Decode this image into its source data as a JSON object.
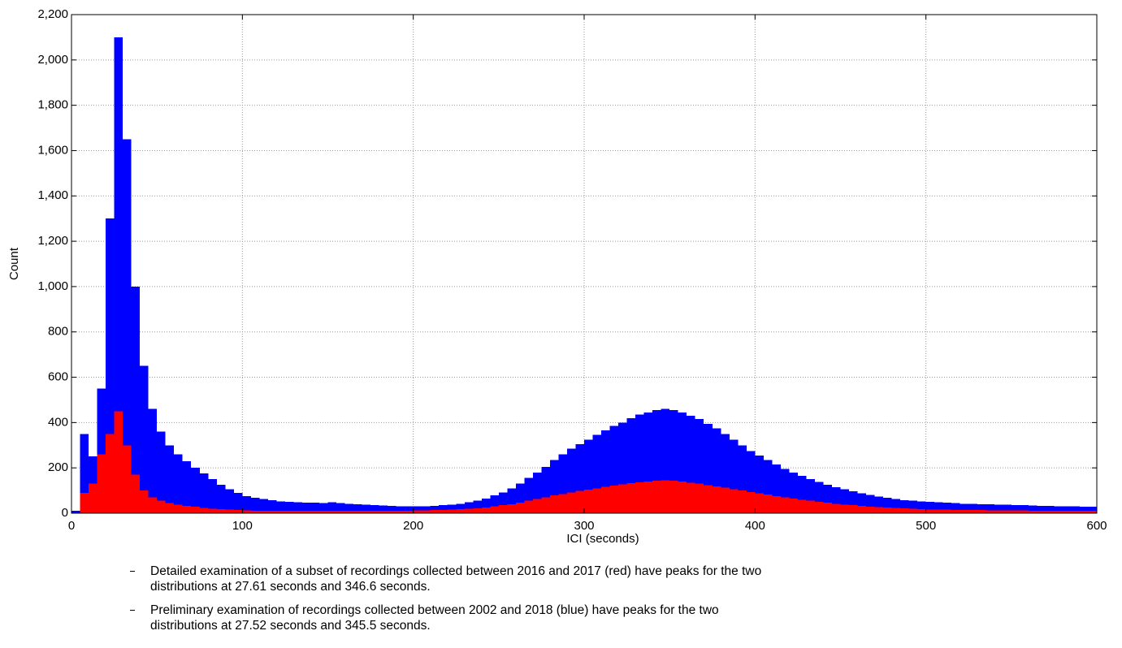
{
  "chart_data": {
    "type": "histogram",
    "xlabel": "ICI (seconds)",
    "ylabel": "Count",
    "xlim": [
      0,
      600
    ],
    "ylim": [
      0,
      2200
    ],
    "xticks": [
      0,
      100,
      200,
      300,
      400,
      500,
      600
    ],
    "yticks": [
      0,
      200,
      400,
      600,
      800,
      {
        "value": 1000,
        "label": "1,000"
      },
      {
        "value": 1200,
        "label": "1,200"
      },
      {
        "value": 1400,
        "label": "1,400"
      },
      {
        "value": 1600,
        "label": "1,600"
      },
      {
        "value": 1800,
        "label": "1,800"
      },
      {
        "value": 2000,
        "label": "2,000"
      },
      {
        "value": 2200,
        "label": "2,200"
      }
    ],
    "grid": true,
    "bins": [
      0,
      5,
      10,
      15,
      20,
      25,
      30,
      35,
      40,
      45,
      50,
      55,
      60,
      65,
      70,
      75,
      80,
      85,
      90,
      95,
      100,
      105,
      110,
      115,
      120,
      125,
      130,
      135,
      140,
      145,
      150,
      155,
      160,
      165,
      170,
      175,
      180,
      185,
      190,
      195,
      200,
      205,
      210,
      215,
      220,
      225,
      230,
      235,
      240,
      245,
      250,
      255,
      260,
      265,
      270,
      275,
      280,
      285,
      290,
      295,
      300,
      305,
      310,
      315,
      320,
      325,
      330,
      335,
      340,
      345,
      350,
      355,
      360,
      365,
      370,
      375,
      380,
      385,
      390,
      395,
      400,
      405,
      410,
      415,
      420,
      425,
      430,
      435,
      440,
      445,
      450,
      455,
      460,
      465,
      470,
      475,
      480,
      485,
      490,
      495,
      500,
      505,
      510,
      515,
      520,
      525,
      530,
      535,
      540,
      545,
      550,
      555,
      560,
      565,
      570,
      575,
      580,
      585,
      590,
      595,
      600
    ],
    "series": [
      {
        "color": "#0000ff",
        "values": [
          10,
          350,
          250,
          550,
          1300,
          2100,
          1650,
          1000,
          650,
          460,
          360,
          300,
          260,
          230,
          200,
          175,
          150,
          125,
          105,
          90,
          75,
          68,
          62,
          57,
          52,
          50,
          48,
          47,
          46,
          45,
          48,
          45,
          42,
          40,
          38,
          36,
          34,
          32,
          30,
          30,
          30,
          30,
          32,
          35,
          38,
          42,
          48,
          55,
          65,
          78,
          92,
          110,
          130,
          155,
          180,
          205,
          235,
          260,
          285,
          305,
          325,
          345,
          365,
          385,
          400,
          420,
          435,
          445,
          455,
          460,
          455,
          445,
          430,
          415,
          395,
          375,
          350,
          325,
          300,
          275,
          255,
          235,
          215,
          195,
          180,
          165,
          150,
          138,
          126,
          115,
          105,
          96,
          88,
          80,
          74,
          68,
          63,
          58,
          55,
          52,
          50,
          48,
          46,
          44,
          42,
          41,
          40,
          39,
          38,
          37,
          36,
          35,
          34,
          33,
          32,
          31,
          30,
          30,
          29,
          28
        ]
      },
      {
        "color": "#ff0000",
        "values": [
          0,
          90,
          130,
          260,
          350,
          450,
          300,
          170,
          100,
          70,
          55,
          45,
          38,
          32,
          28,
          24,
          20,
          18,
          16,
          14,
          12,
          11,
          10,
          10,
          10,
          10,
          10,
          10,
          10,
          10,
          10,
          10,
          10,
          10,
          10,
          10,
          10,
          10,
          10,
          10,
          12,
          13,
          14,
          15,
          16,
          18,
          20,
          22,
          25,
          30,
          35,
          40,
          47,
          55,
          62,
          70,
          78,
          85,
          92,
          98,
          104,
          110,
          116,
          122,
          128,
          133,
          137,
          140,
          143,
          145,
          143,
          140,
          135,
          130,
          124,
          118,
          112,
          106,
          100,
          94,
          88,
          82,
          76,
          70,
          65,
          60,
          55,
          50,
          46,
          42,
          38,
          35,
          32,
          29,
          27,
          25,
          23,
          21,
          19,
          18,
          17,
          16,
          16,
          15,
          15,
          14,
          14,
          13,
          13,
          12,
          12,
          12,
          11,
          11,
          11,
          10,
          10,
          10,
          10,
          10
        ]
      }
    ]
  },
  "notes": [
    "Detailed examination of a subset of recordings collected between 2016 and 2017 (red) have peaks for the two distributions at 27.61 seconds and 346.6 seconds.",
    "Preliminary examination of recordings collected between 2002 and 2018 (blue) have peaks for the two distributions at 27.52 seconds and 345.5 seconds."
  ]
}
